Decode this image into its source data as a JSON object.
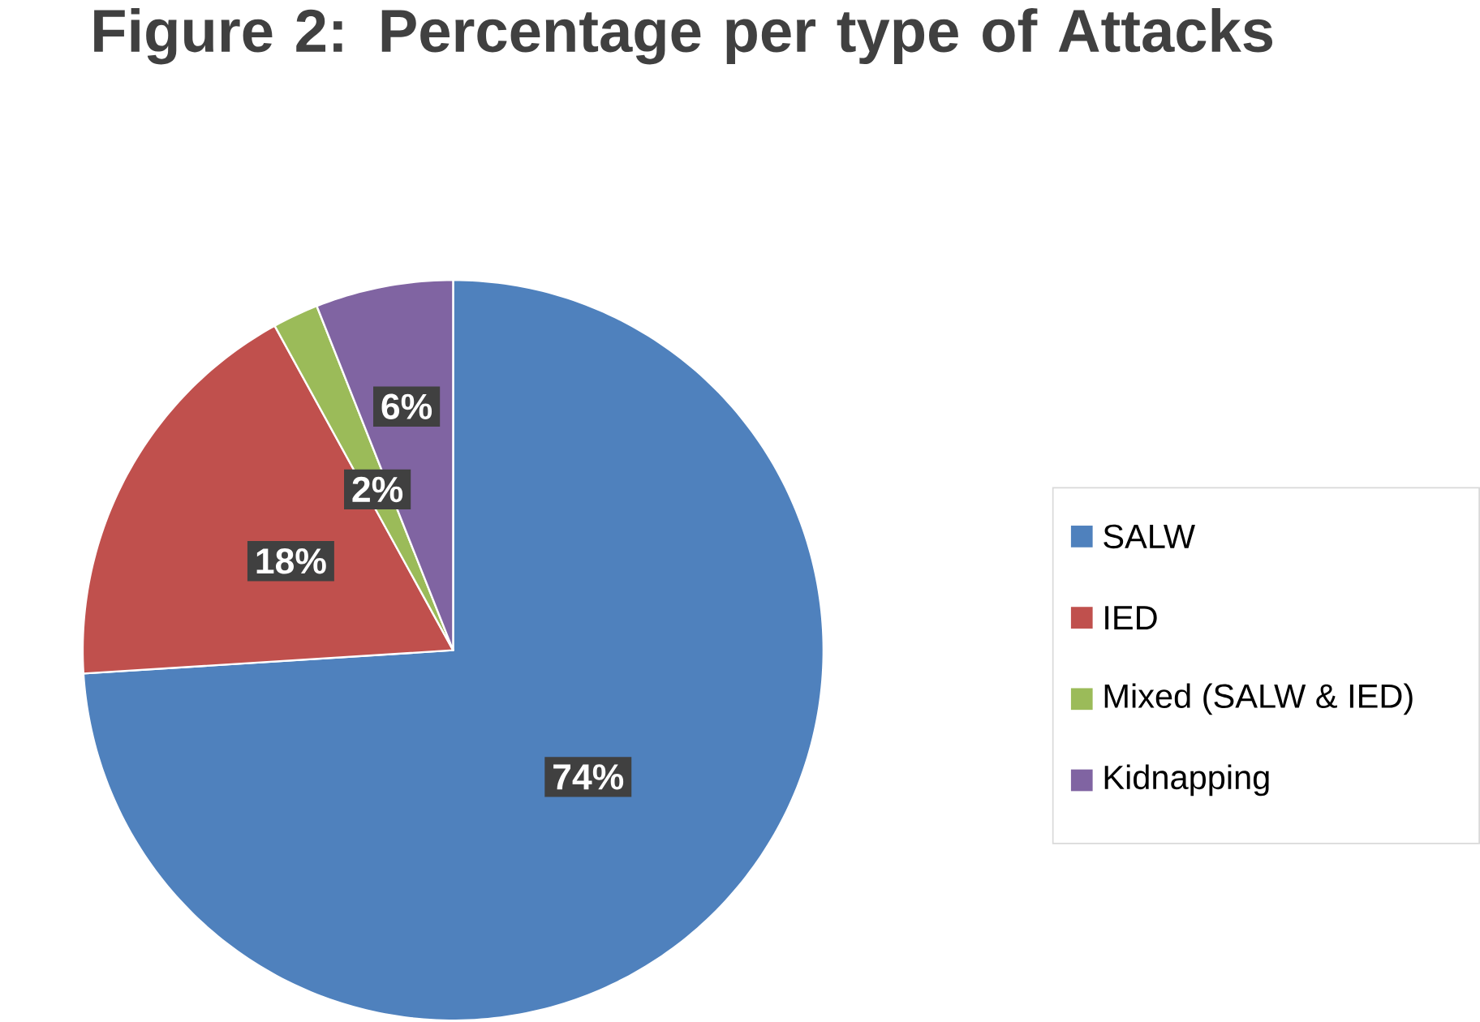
{
  "chart_data": {
    "type": "pie",
    "title": "Figure 2: Percentage per type of Attacks",
    "categories": [
      "SALW",
      "IED",
      "Mixed (SALW & IED)",
      "Kidnapping"
    ],
    "values": [
      74,
      18,
      2,
      6
    ],
    "colors": [
      "#4f81bd",
      "#c0504d",
      "#9bbb59",
      "#8064a2"
    ],
    "value_labels": [
      "74%",
      "18%",
      "2%",
      "6%"
    ],
    "legend": "right"
  }
}
